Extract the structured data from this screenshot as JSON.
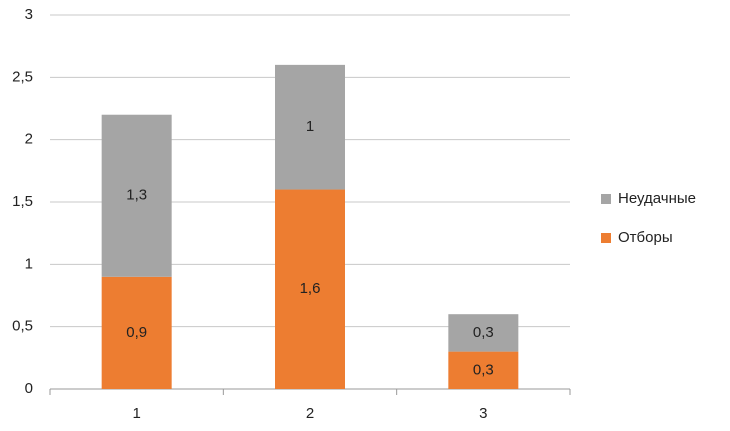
{
  "chart_data": {
    "type": "stacked-bar",
    "categories": [
      "1",
      "2",
      "3"
    ],
    "series": [
      {
        "name": "Отборы",
        "color": "#ed7d31",
        "values": [
          0.9,
          1.6,
          0.3
        ],
        "value_labels": [
          "0,9",
          "1,6",
          "0,3"
        ]
      },
      {
        "name": "Неудачные",
        "color": "#a5a5a5",
        "values": [
          1.3,
          1,
          0.3
        ],
        "value_labels": [
          "1,3",
          "1",
          "0,3"
        ]
      }
    ],
    "ylim": [
      0,
      3
    ],
    "yticks": [
      0,
      {
        "value": 0.5,
        "label": "0,5"
      },
      1,
      {
        "value": 1.5,
        "label": "1,5"
      },
      2,
      {
        "value": 2.5,
        "label": "2,5"
      },
      3
    ],
    "grid": true,
    "legend": "right"
  }
}
